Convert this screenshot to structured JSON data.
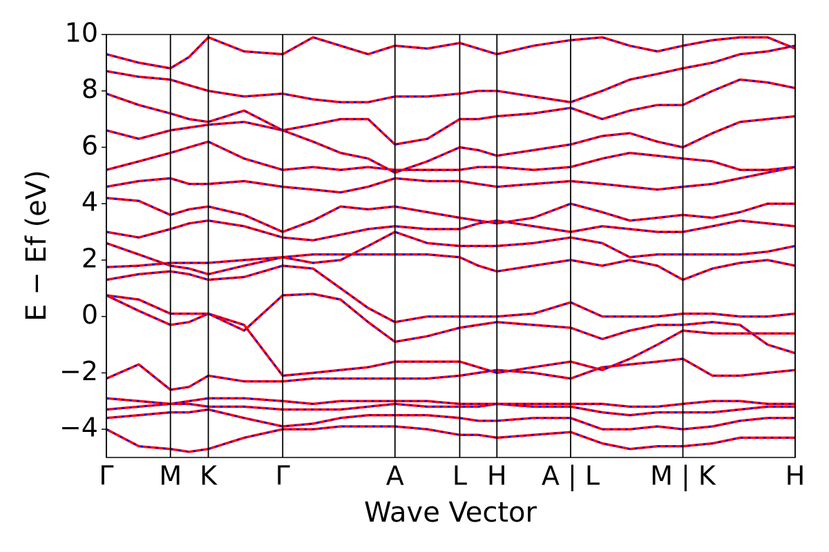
{
  "chart_data": {
    "type": "band-structure",
    "xlabel": "Wave Vector",
    "ylabel": "E − Ef (eV)",
    "color": "#ff0000",
    "dash_color": "#0000ff",
    "xlim": [
      0,
      1
    ],
    "ylim": [
      -5,
      10
    ],
    "yticks": [
      {
        "value": -4,
        "label": "−4"
      },
      {
        "value": -2,
        "label": "−2"
      },
      0,
      2,
      4,
      6,
      8,
      10
    ],
    "xticks": [
      {
        "value": 0,
        "label": "Γ"
      },
      {
        "value": 0.093,
        "label": "M"
      },
      {
        "value": 0.148,
        "label": "K"
      },
      {
        "value": 0.256,
        "label": "Γ"
      },
      {
        "value": 0.419,
        "label": "A"
      },
      {
        "value": 0.513,
        "label": "L"
      },
      {
        "value": 0.567,
        "label": "H"
      },
      {
        "value": 0.674,
        "label": "A | L"
      },
      {
        "value": 0.837,
        "label": "M | K"
      },
      {
        "value": 1,
        "label": "H"
      }
    ],
    "x": [
      0,
      0.047,
      0.093,
      0.12,
      0.148,
      0.2,
      0.256,
      0.3,
      0.34,
      0.38,
      0.419,
      0.466,
      0.513,
      0.54,
      0.567,
      0.62,
      0.674,
      0.72,
      0.76,
      0.8,
      0.837,
      0.88,
      0.92,
      0.96,
      1
    ],
    "series": [
      {
        "values": [
          -4.0,
          -4.6,
          -4.7,
          -4.8,
          -4.7,
          -4.3,
          -4.0,
          -4.0,
          -3.9,
          -3.9,
          -3.9,
          -4.0,
          -4.2,
          -4.2,
          -4.3,
          -4.2,
          -4.1,
          -4.5,
          -4.7,
          -4.6,
          -4.6,
          -4.5,
          -4.3,
          -4.3,
          -4.3
        ]
      },
      {
        "values": [
          -3.6,
          -3.5,
          -3.4,
          -3.4,
          -3.3,
          -3.6,
          -3.9,
          -3.8,
          -3.6,
          -3.5,
          -3.5,
          -3.5,
          -3.6,
          -3.7,
          -3.7,
          -3.6,
          -3.6,
          -4.0,
          -4.0,
          -3.9,
          -4.0,
          -3.9,
          -3.7,
          -3.6,
          -3.6
        ]
      },
      {
        "values": [
          -3.3,
          -3.2,
          -3.1,
          -3.1,
          -3.2,
          -3.2,
          -3.3,
          -3.3,
          -3.3,
          -3.2,
          -3.1,
          -3.2,
          -3.2,
          -3.2,
          -3.1,
          -3.2,
          -3.2,
          -3.4,
          -3.5,
          -3.4,
          -3.4,
          -3.4,
          -3.3,
          -3.2,
          -3.2
        ]
      },
      {
        "values": [
          -2.9,
          -3.0,
          -3.1,
          -3.0,
          -2.9,
          -2.9,
          -3.0,
          -3.1,
          -3.0,
          -3.0,
          -3.0,
          -3.0,
          -3.1,
          -3.1,
          -3.1,
          -3.1,
          -3.1,
          -3.1,
          -3.2,
          -3.2,
          -3.1,
          -3.0,
          -3.0,
          -3.1,
          -3.1
        ]
      },
      {
        "values": [
          -2.2,
          -1.7,
          -2.6,
          -2.5,
          -2.1,
          -2.3,
          -2.3,
          -2.2,
          -2.2,
          -2.2,
          -2.2,
          -2.2,
          -2.1,
          -2.0,
          -1.9,
          -2.0,
          -2.2,
          -1.8,
          -1.7,
          -1.6,
          -1.5,
          -2.1,
          -2.1,
          -2.0,
          -1.9
        ]
      },
      {
        "values": [
          0.75,
          0.2,
          -0.3,
          -0.2,
          0.1,
          -0.3,
          -2.1,
          -2.0,
          -1.9,
          -1.8,
          -1.6,
          -1.6,
          -1.6,
          -1.8,
          -2.0,
          -1.8,
          -1.6,
          -1.9,
          -1.5,
          -1.0,
          -0.5,
          -0.6,
          -0.6,
          -0.6,
          -0.6
        ]
      },
      {
        "values": [
          0.75,
          0.6,
          0.1,
          0.1,
          0.1,
          -0.5,
          0.75,
          0.8,
          0.6,
          -0.2,
          -0.9,
          -0.7,
          -0.4,
          -0.3,
          -0.2,
          -0.3,
          -0.4,
          -0.8,
          -0.5,
          -0.3,
          -0.3,
          -0.2,
          -0.3,
          -1.0,
          -1.3
        ]
      },
      {
        "values": [
          1.3,
          1.5,
          1.6,
          1.5,
          1.3,
          1.4,
          1.8,
          1.7,
          1.0,
          0.3,
          -0.2,
          0.0,
          0.0,
          0.0,
          0.0,
          0.1,
          0.5,
          0.0,
          0.0,
          0.0,
          0.1,
          0.1,
          0.0,
          0.0,
          0.1
        ]
      },
      {
        "values": [
          1.75,
          1.8,
          1.9,
          1.9,
          1.9,
          2.0,
          2.1,
          2.2,
          2.2,
          2.2,
          2.2,
          2.2,
          2.1,
          1.8,
          1.6,
          1.8,
          2.0,
          1.8,
          2.0,
          1.8,
          1.3,
          1.7,
          1.9,
          2.0,
          1.8
        ]
      },
      {
        "values": [
          2.6,
          2.2,
          1.8,
          1.7,
          1.5,
          1.8,
          2.1,
          1.9,
          2.0,
          2.5,
          3.0,
          2.6,
          2.5,
          2.5,
          2.5,
          2.6,
          2.8,
          2.6,
          2.1,
          2.2,
          2.2,
          2.2,
          2.2,
          2.3,
          2.5
        ]
      },
      {
        "values": [
          3.0,
          2.8,
          3.1,
          3.3,
          3.4,
          3.2,
          2.8,
          2.7,
          2.9,
          3.1,
          3.2,
          3.1,
          3.1,
          3.3,
          3.4,
          3.2,
          3.0,
          3.2,
          3.1,
          3.0,
          3.0,
          3.2,
          3.4,
          3.3,
          3.2
        ]
      },
      {
        "values": [
          4.2,
          4.1,
          3.6,
          3.8,
          3.9,
          3.6,
          3.0,
          3.4,
          3.9,
          3.8,
          3.9,
          3.7,
          3.5,
          3.4,
          3.3,
          3.5,
          4.0,
          3.7,
          3.4,
          3.5,
          3.6,
          3.5,
          3.7,
          4.0,
          4.0
        ]
      },
      {
        "values": [
          4.6,
          4.8,
          4.9,
          4.7,
          4.7,
          4.8,
          4.6,
          4.5,
          4.4,
          4.6,
          4.9,
          4.8,
          4.8,
          4.7,
          4.6,
          4.7,
          4.8,
          4.7,
          4.6,
          4.5,
          4.6,
          4.7,
          4.9,
          5.1,
          5.3
        ]
      },
      {
        "values": [
          5.2,
          5.5,
          5.8,
          6.0,
          6.2,
          5.6,
          5.2,
          5.3,
          5.2,
          5.3,
          5.2,
          5.2,
          5.2,
          5.3,
          5.3,
          5.2,
          5.3,
          5.6,
          5.8,
          5.7,
          5.6,
          5.5,
          5.2,
          5.2,
          5.3
        ]
      },
      {
        "values": [
          6.6,
          6.3,
          6.6,
          6.7,
          6.8,
          6.9,
          6.6,
          6.2,
          5.8,
          5.6,
          5.1,
          5.5,
          6.0,
          5.9,
          5.7,
          5.9,
          6.1,
          6.4,
          6.5,
          6.2,
          6.0,
          6.5,
          6.9,
          7.0,
          7.1
        ]
      },
      {
        "values": [
          7.9,
          7.5,
          7.2,
          7.0,
          6.9,
          7.3,
          6.6,
          6.8,
          7.0,
          7.0,
          6.1,
          6.3,
          7.0,
          7.0,
          7.1,
          7.2,
          7.4,
          7.0,
          7.3,
          7.5,
          7.5,
          8.0,
          8.4,
          8.3,
          8.1
        ]
      },
      {
        "values": [
          8.7,
          8.5,
          8.4,
          8.2,
          8.0,
          7.8,
          7.9,
          7.7,
          7.6,
          7.6,
          7.8,
          7.8,
          7.9,
          8.0,
          8.0,
          7.8,
          7.6,
          8.0,
          8.4,
          8.6,
          8.8,
          9.0,
          9.3,
          9.4,
          9.6
        ]
      },
      {
        "values": [
          9.3,
          9.0,
          8.8,
          9.2,
          9.9,
          9.4,
          9.3,
          9.9,
          9.6,
          9.3,
          9.6,
          9.5,
          9.7,
          9.5,
          9.3,
          9.6,
          9.8,
          9.9,
          9.6,
          9.4,
          9.6,
          9.8,
          9.9,
          9.9,
          9.5
        ]
      }
    ]
  }
}
